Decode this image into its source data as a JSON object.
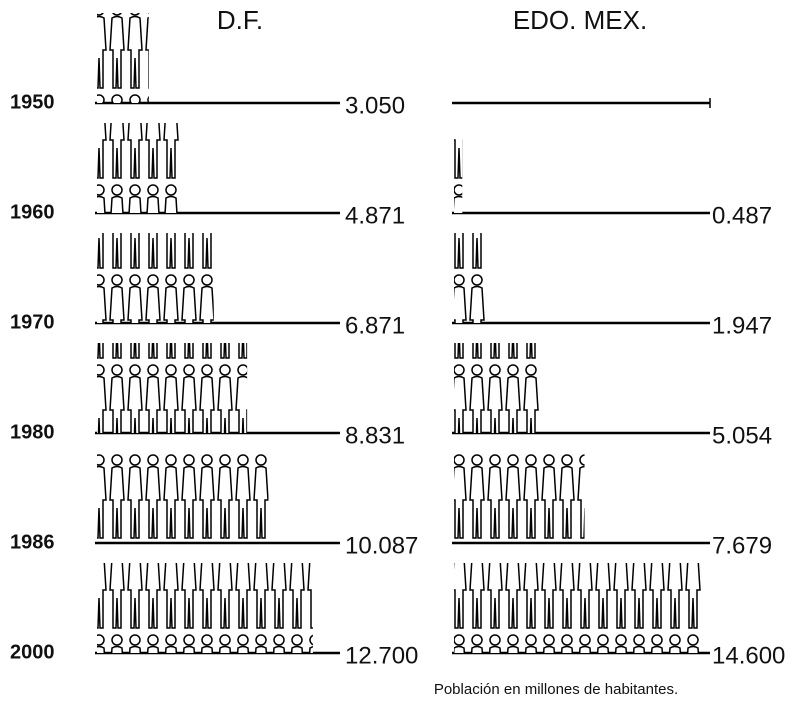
{
  "chart_data": {
    "type": "pictograph",
    "categories": [
      "1950",
      "1960",
      "1970",
      "1980",
      "1986",
      "2000"
    ],
    "series": [
      {
        "name": "D.F.",
        "color": "#000000",
        "values": [
          3.05,
          4.871,
          6.871,
          8.831,
          10.087,
          12.7
        ],
        "value_labels": [
          "3.050",
          "4.871",
          "6.871",
          "8.831",
          "10.087",
          "12.700"
        ]
      },
      {
        "name": "EDO. MEX.",
        "color": "#000000",
        "values": [
          null,
          0.487,
          1.947,
          5.054,
          7.679,
          14.6
        ],
        "value_labels": [
          null,
          "0.487",
          "1.947",
          "5.054",
          "7.679",
          "14.600"
        ]
      }
    ],
    "note": "Población en millones de habitantes."
  }
}
